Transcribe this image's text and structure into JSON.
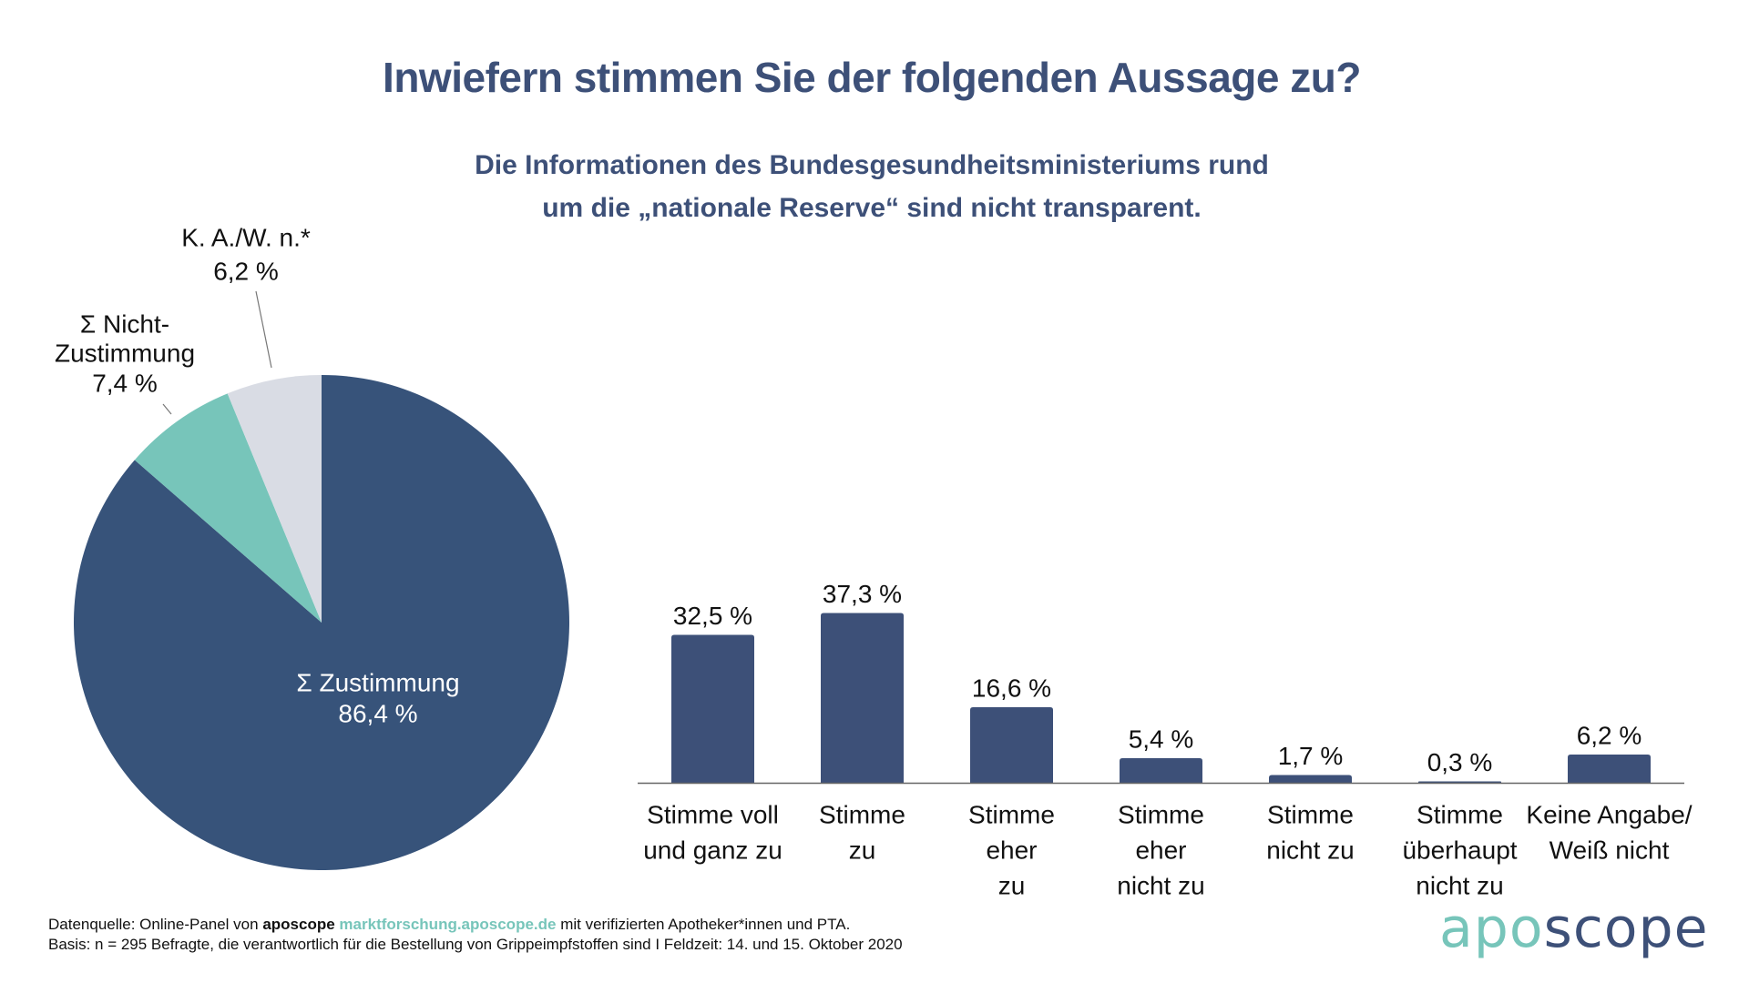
{
  "title": "Inwiefern stimmen Sie der folgenden Aussage zu?",
  "subtitle": {
    "line1": "Die Informationen des Bundesgesundheitsministeriums rund",
    "line2": "um die „nationale Reserve“ sind nicht transparent."
  },
  "colors": {
    "primary": "#3d5078",
    "pie_main": "#37537a",
    "teal": "#77c5ba",
    "light_gray": "#d9dce4",
    "axis": "#666666"
  },
  "chart_data": [
    {
      "type": "pie",
      "title": "",
      "start": "top",
      "direction": "clockwise",
      "slices": [
        {
          "label": "Σ Zustimmung",
          "value": 86.4,
          "value_label": "86,4 %",
          "color": "#37537a",
          "label_lines": [
            "Σ Zustimmung",
            "86,4 %"
          ]
        },
        {
          "label": "Σ Nicht-Zustimmung",
          "value": 7.4,
          "value_label": "7,4 %",
          "color": "#77c5ba",
          "label_lines": [
            "Σ Nicht-",
            "Zustimmung",
            "7,4 %"
          ]
        },
        {
          "label": "K. A./W. n.*",
          "value": 6.2,
          "value_label": "6,2 %",
          "color": "#d9dce4",
          "label_lines": [
            "K. A./W. n.*",
            "6,2 %"
          ]
        }
      ]
    },
    {
      "type": "bar",
      "title": "",
      "xlabel": "",
      "ylabel": "",
      "ylim": [
        0,
        40
      ],
      "grid": false,
      "categories": [
        [
          "Stimme voll",
          "und ganz zu"
        ],
        [
          "Stimme",
          "zu"
        ],
        [
          "Stimme",
          "eher",
          "zu"
        ],
        [
          "Stimme",
          "eher",
          "nicht zu"
        ],
        [
          "Stimme",
          "nicht zu"
        ],
        [
          "Stimme",
          "überhaupt",
          "nicht zu"
        ],
        [
          "Keine Angabe/",
          "Weiß nicht"
        ]
      ],
      "values": [
        32.5,
        37.3,
        16.6,
        5.4,
        1.7,
        0.3,
        6.2
      ],
      "value_labels": [
        "32,5 %",
        "37,3 %",
        "16,6 %",
        "5,4 %",
        "1,7 %",
        "0,3 %",
        "6,2 %"
      ],
      "color": "#3d5078"
    }
  ],
  "footer": {
    "line1_prefix": "Datenquelle: Online-Panel von ",
    "line1_brand": "aposcope",
    "line1_link": "marktforschung.aposcope.de",
    "line1_suffix": " mit verifizierten Apotheker*innen und PTA.",
    "line2": "Basis: n = 295 Befragte, die verantwortlich für die Bestellung von Grippeimpfstoffen sind I Feldzeit: 14. und 15. Oktober 2020"
  },
  "logo": {
    "part1": "apo",
    "part2": "scope"
  }
}
